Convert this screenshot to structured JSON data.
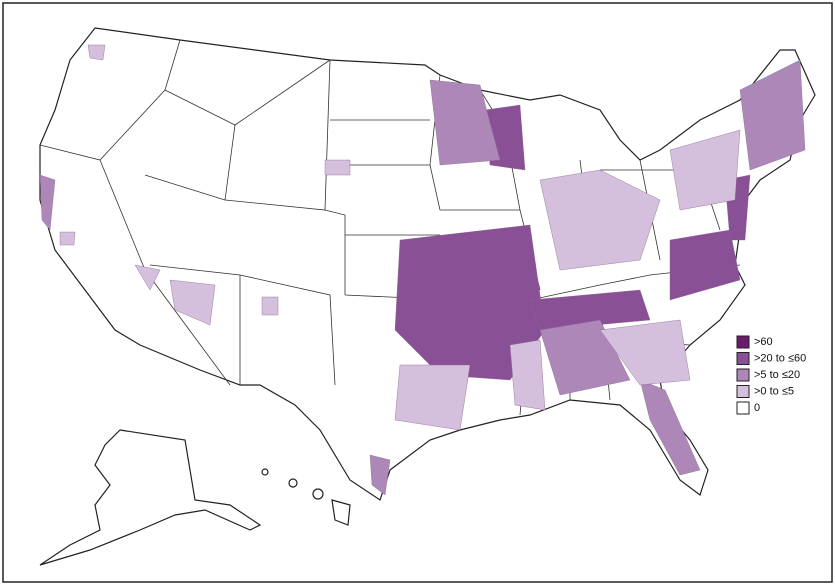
{
  "legend": {
    "items": [
      {
        "label": ">60",
        "color": "#6a1b6e"
      },
      {
        "label": ">20 to ≤60",
        "color": "#8a5095"
      },
      {
        "label": ">5 to ≤20",
        "color": "#ad87b8"
      },
      {
        "label": ">0 to ≤5",
        "color": "#d4bfdc"
      },
      {
        "label": "0",
        "color": "#ffffff"
      }
    ]
  }
}
